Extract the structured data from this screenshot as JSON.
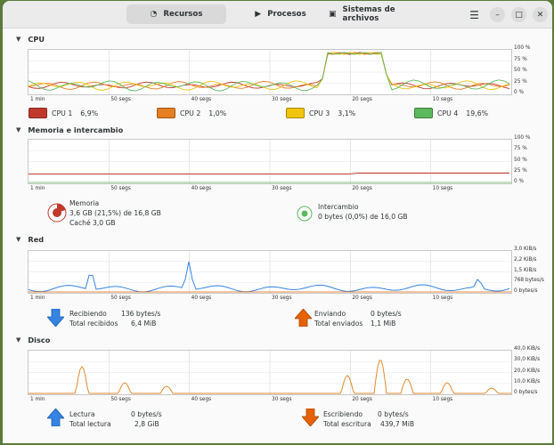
{
  "header": {
    "tabs": [
      {
        "label": "Recursos",
        "icon": "gauge-icon"
      },
      {
        "label": "Procesos",
        "icon": "play-icon"
      },
      {
        "label": "Sistemas de archivos",
        "icon": "disk-icon"
      }
    ],
    "menu_icon": "☰",
    "minimize_icon": "–",
    "maximize_icon": "□",
    "close_icon": "✕"
  },
  "x_ticks": [
    "1 min",
    "50 segs",
    "40 segs",
    "30 segs",
    "20 segs",
    "10 segs"
  ],
  "cpu": {
    "title": "CPU",
    "y_ticks": [
      "100 %",
      "75 %",
      "50 %",
      "25 %",
      "0 %"
    ],
    "legend": [
      {
        "name": "CPU 1",
        "value": "6,9%",
        "color": "#c0392b"
      },
      {
        "name": "CPU 2",
        "value": "1,0%",
        "color": "#e67e22"
      },
      {
        "name": "CPU 3",
        "value": "3,1%",
        "color": "#f1c40f"
      },
      {
        "name": "CPU 4",
        "value": "19,6%",
        "color": "#5cb85c"
      }
    ]
  },
  "memory": {
    "title": "Memoria e intercambio",
    "y_ticks": [
      "100 %",
      "75 %",
      "50 %",
      "25 %",
      "0 %"
    ],
    "mem_label": "Memoria",
    "mem_value": "3,6 GB (21,5%) de 16,8 GB",
    "cache": "Caché 3,0 GB",
    "swap_label": "Intercambio",
    "swap_value": "0 bytes (0,0%) de 16,0 GB"
  },
  "network": {
    "title": "Red",
    "y_ticks": [
      "3,0 KiB/s",
      "2,2 KiB/s",
      "1,5 KiB/s",
      "768 bytes/s",
      "0 bytes/s"
    ],
    "recv_label": "Recibiendo",
    "recv_value": "136 bytes/s",
    "recv_total_label": "Total recibidos",
    "recv_total": "6,4 MiB",
    "send_label": "Enviando",
    "send_value": "0 bytes/s",
    "send_total_label": "Total enviados",
    "send_total": "1,1 MiB"
  },
  "disk": {
    "title": "Disco",
    "y_ticks": [
      "40,0 KiB/s",
      "30,0 KiB/s",
      "20,0 KiB/s",
      "10,0 KiB/s",
      "0 bytes/s"
    ],
    "read_label": "Lectura",
    "read_value": "0 bytes/s",
    "read_total_label": "Total lectura",
    "read_total": "2,8 GiB",
    "write_label": "Escribiendo",
    "write_value": "0 bytes/s",
    "write_total_label": "Total escritura",
    "write_total": "439,7 MiB"
  },
  "colors": {
    "receive": "#3584e4",
    "send": "#e66100",
    "read": "#3584e4",
    "write": "#e66100",
    "net_line": "#3584e4",
    "disk_line": "#e08a30",
    "mem_line": "#c0392b"
  }
}
